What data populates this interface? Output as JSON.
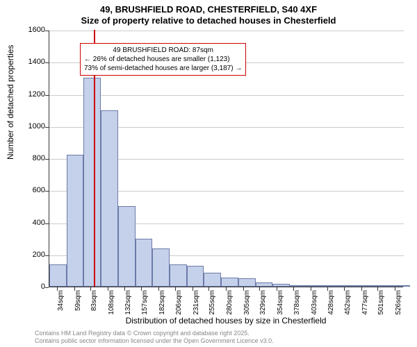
{
  "title_line1": "49, BRUSHFIELD ROAD, CHESTERFIELD, S40 4XF",
  "title_line2": "Size of property relative to detached houses in Chesterfield",
  "ylabel": "Number of detached properties",
  "xlabel": "Distribution of detached houses by size in Chesterfield",
  "chart": {
    "type": "histogram",
    "background_color": "#ffffff",
    "bar_fill": "#c5d0ea",
    "bar_border": "#6b7ba8",
    "grid_color": "#cccccc",
    "reference_line_color": "#cc0000",
    "reference_value": 87,
    "ylim": [
      0,
      1600
    ],
    "ytick_step": 200,
    "yticks": [
      0,
      200,
      400,
      600,
      800,
      1000,
      1200,
      1400,
      1600
    ],
    "xlim": [
      22,
      538
    ],
    "xticks": [
      34,
      59,
      83,
      108,
      132,
      157,
      182,
      206,
      231,
      255,
      280,
      305,
      329,
      354,
      378,
      403,
      428,
      452,
      477,
      501,
      526
    ],
    "xtick_unit": "sqm",
    "bin_width": 25,
    "bins_start": 22,
    "values": [
      140,
      820,
      1300,
      1100,
      500,
      300,
      240,
      140,
      130,
      85,
      55,
      50,
      25,
      18,
      10,
      8,
      6,
      5,
      4,
      3,
      2
    ],
    "label_fontsize": 12,
    "tick_fontsize": 11,
    "title_fontsize": 13
  },
  "annotation": {
    "line1": "49 BRUSHFIELD ROAD: 87sqm",
    "line2": "← 26% of detached houses are smaller (1,123)",
    "line3": "73% of semi-detached houses are larger (3,187) →",
    "border_color": "#cc0000",
    "bg_color": "#ffffff",
    "fontsize": 10
  },
  "footer": {
    "line1": "Contains HM Land Registry data © Crown copyright and database right 2025.",
    "line2": "Contains public sector information licensed under the Open Government Licence v3.0.",
    "color": "#888888",
    "fontsize": 9
  }
}
